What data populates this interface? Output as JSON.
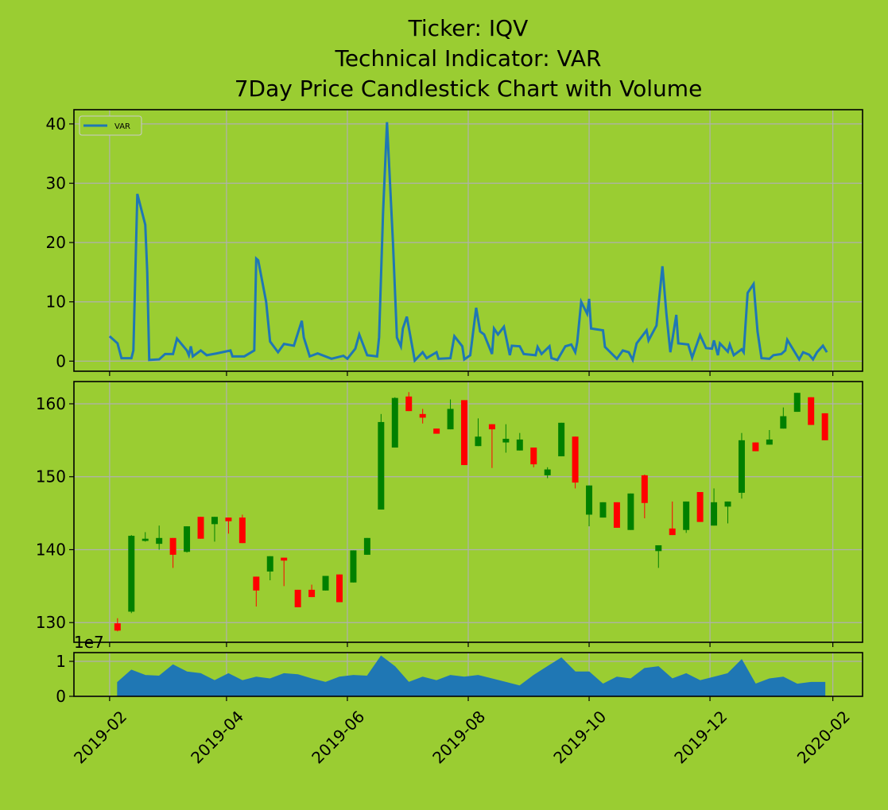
{
  "chart_data": [
    {
      "type": "line",
      "title": [
        "Ticker: IQV",
        "Technical Indicator: VAR",
        "7Day Price Candlestick Chart with Volume"
      ],
      "x": [
        "2019-02-01",
        "2019-02-05",
        "2019-02-07",
        "2019-02-12",
        "2019-02-13",
        "2019-02-15",
        "2019-02-19",
        "2019-02-20",
        "2019-02-21",
        "2019-02-26",
        "2019-03-01",
        "2019-03-05",
        "2019-03-07",
        "2019-03-12",
        "2019-03-13",
        "2019-03-14",
        "2019-03-15",
        "2019-03-19",
        "2019-03-22",
        "2019-03-27",
        "2019-04-03",
        "2019-04-04",
        "2019-04-10",
        "2019-04-15",
        "2019-04-16",
        "2019-04-17",
        "2019-04-21",
        "2019-04-23",
        "2019-04-27",
        "2019-04-30",
        "2019-05-05",
        "2019-05-09",
        "2019-05-10",
        "2019-05-13",
        "2019-05-17",
        "2019-05-24",
        "2019-05-30",
        "2019-06-01",
        "2019-06-05",
        "2019-06-07",
        "2019-06-11",
        "2019-06-16",
        "2019-06-17",
        "2019-06-19",
        "2019-06-21",
        "2019-06-24",
        "2019-06-26",
        "2019-06-28",
        "2019-06-29",
        "2019-07-01",
        "2019-07-05",
        "2019-07-09",
        "2019-07-11",
        "2019-07-16",
        "2019-07-17",
        "2019-07-23",
        "2019-07-25",
        "2019-07-29",
        "2019-07-30",
        "2019-08-02",
        "2019-08-05",
        "2019-08-07",
        "2019-08-09",
        "2019-08-13",
        "2019-08-14",
        "2019-08-16",
        "2019-08-19",
        "2019-08-22",
        "2019-08-23",
        "2019-08-27",
        "2019-08-29",
        "2019-09-04",
        "2019-09-05",
        "2019-09-07",
        "2019-09-11",
        "2019-09-12",
        "2019-09-15",
        "2019-09-19",
        "2019-09-22",
        "2019-09-24",
        "2019-09-25",
        "2019-09-27",
        "2019-09-30",
        "2019-10-01",
        "2019-10-02",
        "2019-10-08",
        "2019-10-09",
        "2019-10-15",
        "2019-10-18",
        "2019-10-21",
        "2019-10-23",
        "2019-10-25",
        "2019-10-30",
        "2019-10-31",
        "2019-11-04",
        "2019-11-07",
        "2019-11-09",
        "2019-11-11",
        "2019-11-14",
        "2019-11-15",
        "2019-11-20",
        "2019-11-22",
        "2019-11-26",
        "2019-11-29",
        "2019-12-02",
        "2019-12-03",
        "2019-12-05",
        "2019-12-06",
        "2019-12-10",
        "2019-12-11",
        "2019-12-13",
        "2019-12-17",
        "2019-12-18",
        "2019-12-20",
        "2019-12-23",
        "2019-12-25",
        "2019-12-27",
        "2019-12-31",
        "2020-01-02",
        "2020-01-06",
        "2020-01-08",
        "2020-01-09",
        "2020-01-15",
        "2020-01-17",
        "2020-01-20",
        "2020-01-22",
        "2020-01-24",
        "2020-01-27",
        "2020-01-29"
      ],
      "series": [
        {
          "name": "VAR",
          "color": "#1f77b4",
          "values": [
            4.2,
            3,
            0.5,
            0.5,
            1.8,
            28.2,
            23,
            15,
            0.2,
            0.3,
            1.2,
            1.2,
            3.8,
            1.8,
            1.0,
            2.5,
            0.8,
            1.8,
            1.0,
            1.3,
            1.8,
            0.8,
            0.8,
            1.8,
            17.3,
            17,
            10,
            3.3,
            1.5,
            2.9,
            2.6,
            6.8,
            4,
            0.8,
            1.3,
            0.4,
            0.9,
            0.4,
            2.1,
            4.5,
            1.0,
            0.8,
            4,
            25,
            40.3,
            20,
            4,
            2.5,
            5.5,
            7.5,
            0.1,
            1.5,
            0.5,
            1.5,
            0.4,
            0.5,
            4.2,
            2.5,
            0.3,
            1.0,
            9,
            5,
            4.5,
            1.2,
            5.5,
            4.5,
            5.8,
            1,
            2.6,
            2.5,
            1.2,
            1.0,
            2.4,
            1.2,
            2.5,
            0.5,
            0.2,
            2.5,
            2.8,
            1.5,
            3.2,
            10,
            8,
            10.5,
            5.5,
            5.2,
            2.4,
            0.4,
            1.8,
            1.5,
            0.2,
            3,
            5.2,
            3.5,
            6,
            16,
            8,
            1.5,
            7.8,
            3,
            2.8,
            0.6,
            4.4,
            2.2,
            2.1,
            3.5,
            1,
            3,
            1.6,
            2.8,
            1,
            2,
            1.5,
            11.5,
            13,
            5,
            0.5,
            0.4,
            1.0,
            1.2,
            1.8,
            3.6,
            0.3,
            1.5,
            1.1,
            0.3,
            1.5,
            2.6,
            1.5
          ]
        }
      ],
      "legend": "upper left",
      "ylim": [
        -1.7,
        42.4
      ],
      "yticks": [
        0,
        10,
        20,
        30,
        40
      ],
      "xlim": [
        "2019-01-14",
        "2020-02-16"
      ],
      "xticks": [
        "2019-02",
        "2019-04",
        "2019-06",
        "2019-08",
        "2019-10",
        "2019-12",
        "2020-02"
      ],
      "grid": true
    },
    {
      "type": "candlestick",
      "x": [
        "2019-02-05",
        "2019-02-12",
        "2019-02-19",
        "2019-02-26",
        "2019-03-05",
        "2019-03-12",
        "2019-03-19",
        "2019-03-26",
        "2019-04-02",
        "2019-04-09",
        "2019-04-16",
        "2019-04-23",
        "2019-04-30",
        "2019-05-07",
        "2019-05-14",
        "2019-05-21",
        "2019-05-28",
        "2019-06-04",
        "2019-06-11",
        "2019-06-18",
        "2019-06-25",
        "2019-07-02",
        "2019-07-09",
        "2019-07-16",
        "2019-07-23",
        "2019-07-30",
        "2019-08-06",
        "2019-08-13",
        "2019-08-20",
        "2019-08-27",
        "2019-09-03",
        "2019-09-10",
        "2019-09-17",
        "2019-09-24",
        "2019-10-01",
        "2019-10-08",
        "2019-10-15",
        "2019-10-22",
        "2019-10-29",
        "2019-11-05",
        "2019-11-12",
        "2019-11-19",
        "2019-11-26",
        "2019-12-03",
        "2019-12-10",
        "2019-12-17",
        "2019-12-24",
        "2019-12-31",
        "2020-01-07",
        "2020-01-14",
        "2020-01-21",
        "2020-01-28"
      ],
      "open": [
        129.9,
        131.5,
        141.2,
        140.8,
        141.6,
        139.7,
        144.5,
        143.5,
        144.4,
        144.4,
        136.3,
        137.0,
        138.9,
        134.5,
        134.5,
        134.4,
        136.6,
        135.5,
        139.3,
        145.5,
        154.0,
        161.0,
        158.6,
        156.6,
        156.5,
        160.5,
        154.2,
        157.2,
        154.7,
        153.6,
        154.0,
        150.2,
        152.8,
        155.5,
        144.8,
        144.4,
        146.5,
        142.7,
        150.2,
        139.8,
        142.9,
        142.7,
        147.9,
        143.3,
        145.9,
        147.8,
        154.7,
        154.4,
        156.6,
        158.9,
        160.9,
        158.7
      ],
      "high": [
        130.6,
        142.0,
        142.4,
        143.3,
        141.6,
        143.2,
        144.5,
        144.5,
        144.4,
        144.8,
        136.3,
        139.1,
        138.9,
        134.5,
        135.2,
        136.4,
        136.6,
        139.9,
        141.6,
        158.6,
        160.9,
        161.6,
        159.3,
        156.6,
        160.6,
        160.5,
        158.0,
        157.2,
        157.2,
        156.0,
        154.0,
        151.3,
        157.4,
        155.5,
        148.8,
        146.5,
        146.5,
        147.7,
        150.3,
        140.6,
        146.6,
        146.6,
        147.9,
        148.4,
        146.6,
        156.0,
        154.7,
        156.4,
        159.5,
        161.5,
        160.9,
        158.7
      ],
      "low": [
        128.8,
        131.3,
        141.1,
        140.0,
        137.5,
        139.6,
        141.5,
        141.1,
        142.2,
        140.9,
        132.2,
        135.8,
        135.0,
        132.1,
        133.5,
        134.4,
        132.8,
        135.5,
        139.3,
        145.5,
        154.0,
        159.0,
        157.3,
        155.9,
        156.5,
        151.6,
        154.2,
        151.2,
        153.3,
        153.6,
        151.3,
        149.8,
        152.8,
        148.4,
        143.2,
        144.4,
        143.0,
        142.7,
        144.3,
        137.5,
        142.0,
        142.3,
        143.8,
        143.3,
        143.6,
        147.0,
        153.5,
        154.4,
        156.6,
        158.9,
        157.1,
        155.0
      ],
      "close": [
        128.9,
        141.9,
        141.5,
        141.6,
        139.3,
        143.2,
        141.5,
        144.5,
        143.9,
        140.9,
        134.4,
        139.1,
        138.5,
        132.1,
        133.5,
        136.4,
        132.8,
        139.9,
        141.6,
        157.5,
        160.8,
        159.0,
        158.1,
        155.9,
        159.3,
        151.6,
        155.5,
        156.5,
        155.2,
        155.1,
        151.7,
        151.0,
        157.4,
        149.2,
        148.8,
        146.5,
        143.0,
        147.7,
        146.4,
        140.6,
        142.0,
        146.6,
        143.8,
        146.5,
        146.6,
        155.0,
        153.5,
        155.1,
        158.3,
        161.5,
        157.1,
        155.0
      ],
      "up_color": "#008000",
      "down_color": "#ff0000",
      "ylim": [
        127.3,
        163.05
      ],
      "yticks": [
        130,
        140,
        150,
        160
      ],
      "xlim": [
        "2019-01-14",
        "2020-02-16"
      ],
      "xticks": [
        "2019-02",
        "2019-04",
        "2019-06",
        "2019-08",
        "2019-10",
        "2019-12",
        "2020-02"
      ],
      "grid": true
    },
    {
      "type": "area",
      "x": [
        "2019-02-05",
        "2019-02-12",
        "2019-02-19",
        "2019-02-26",
        "2019-03-05",
        "2019-03-12",
        "2019-03-19",
        "2019-03-26",
        "2019-04-02",
        "2019-04-09",
        "2019-04-16",
        "2019-04-23",
        "2019-04-30",
        "2019-05-07",
        "2019-05-14",
        "2019-05-21",
        "2019-05-28",
        "2019-06-04",
        "2019-06-11",
        "2019-06-18",
        "2019-06-25",
        "2019-07-02",
        "2019-07-09",
        "2019-07-16",
        "2019-07-23",
        "2019-07-30",
        "2019-08-06",
        "2019-08-13",
        "2019-08-20",
        "2019-08-27",
        "2019-09-03",
        "2019-09-10",
        "2019-09-17",
        "2019-09-24",
        "2019-10-01",
        "2019-10-08",
        "2019-10-15",
        "2019-10-22",
        "2019-10-29",
        "2019-11-05",
        "2019-11-12",
        "2019-11-19",
        "2019-11-26",
        "2019-12-03",
        "2019-12-10",
        "2019-12-17",
        "2019-12-24",
        "2019-12-31",
        "2020-01-07",
        "2020-01-14",
        "2020-01-21",
        "2020-01-28"
      ],
      "values": [
        0.4,
        0.75,
        0.6,
        0.58,
        0.9,
        0.7,
        0.65,
        0.45,
        0.65,
        0.45,
        0.55,
        0.5,
        0.65,
        0.62,
        0.5,
        0.4,
        0.55,
        0.6,
        0.58,
        1.15,
        0.85,
        0.4,
        0.55,
        0.45,
        0.6,
        0.55,
        0.6,
        0.5,
        0.4,
        0.3,
        0.6,
        0.85,
        1.1,
        0.7,
        0.7,
        0.35,
        0.55,
        0.5,
        0.8,
        0.85,
        0.5,
        0.65,
        0.45,
        0.55,
        0.65,
        1.05,
        0.35,
        0.5,
        0.55,
        0.35,
        0.4,
        0.4
      ],
      "color": "#1f77b4",
      "offset_label": "1e7",
      "ylim": [
        0,
        1.25
      ],
      "yticks": [
        0,
        1
      ],
      "xlim": [
        "2019-01-14",
        "2020-02-16"
      ],
      "xticks": [
        "2019-02",
        "2019-04",
        "2019-06",
        "2019-08",
        "2019-10",
        "2019-12",
        "2020-02"
      ],
      "grid": true
    }
  ]
}
